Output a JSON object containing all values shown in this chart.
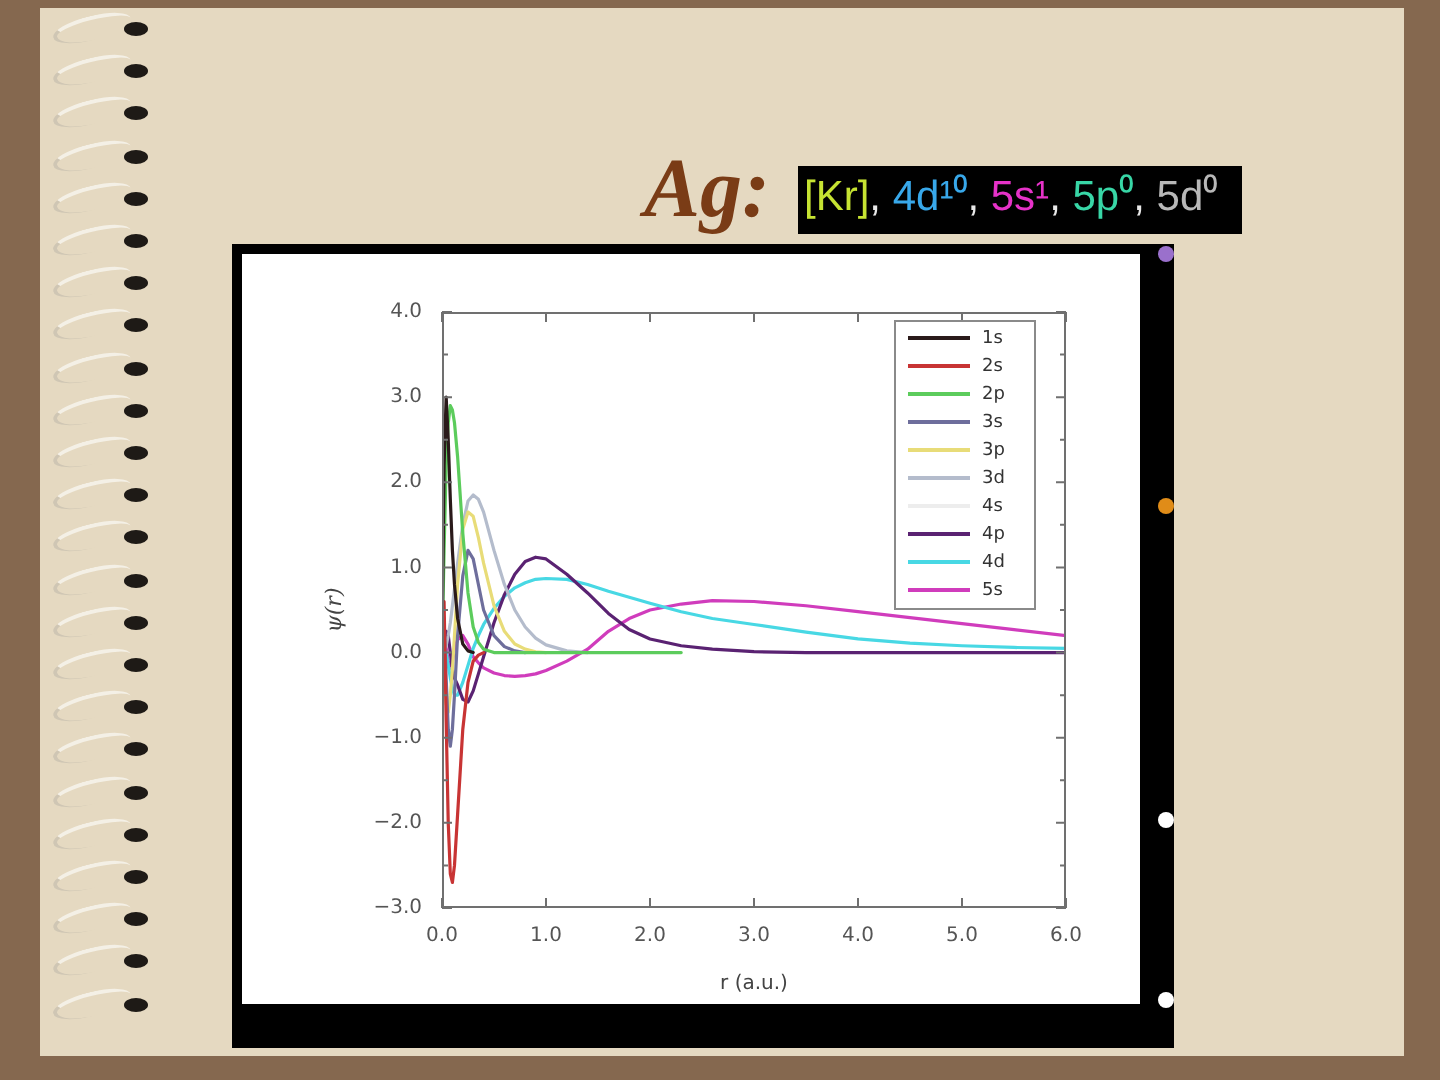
{
  "chart_data": {
    "type": "line",
    "title": "Ag:",
    "subtitle": "[Kr], 4d¹⁰, 5s¹, 5p⁰, 5d⁰",
    "xlabel": "r (a.u.)",
    "ylabel": "ψ(r)",
    "x": [
      0,
      0.02,
      0.04,
      0.06,
      0.08,
      0.1,
      0.12,
      0.15,
      0.2,
      0.25,
      0.3,
      0.35,
      0.4,
      0.5,
      0.6,
      0.7,
      0.8,
      0.9,
      1.0,
      1.2,
      1.4,
      1.6,
      1.8,
      2.0,
      2.3,
      2.6,
      3.0,
      3.5,
      4.0,
      4.5,
      5.0,
      5.5,
      6.0
    ],
    "series": [
      {
        "name": "1s",
        "color": "#2a1a1a",
        "values": [
          0,
          2.2,
          3.0,
          2.5,
          1.8,
          1.2,
          0.8,
          0.4,
          0.1,
          0.02,
          0,
          null,
          null,
          null,
          null,
          null,
          null,
          null,
          null,
          null,
          null,
          null,
          null,
          null,
          null,
          null,
          null,
          null,
          null,
          null,
          null,
          null,
          null
        ]
      },
      {
        "name": "2s",
        "color": "#c83434",
        "values": [
          0,
          0.6,
          -0.8,
          -2.0,
          -2.6,
          -2.7,
          -2.5,
          -1.9,
          -0.9,
          -0.35,
          -0.1,
          -0.03,
          0,
          null,
          null,
          null,
          null,
          null,
          null,
          null,
          null,
          null,
          null,
          null,
          null,
          null,
          null,
          null,
          null,
          null,
          null,
          null,
          null
        ]
      },
      {
        "name": "2p",
        "color": "#5ccc5c",
        "values": [
          0,
          1.2,
          2.2,
          2.7,
          2.9,
          2.85,
          2.7,
          2.3,
          1.4,
          0.7,
          0.3,
          0.12,
          0.04,
          0,
          0,
          0,
          0,
          0,
          0,
          0,
          0,
          0,
          0,
          0,
          0,
          null,
          null,
          null,
          null,
          null,
          null,
          null,
          null
        ]
      },
      {
        "name": "3s",
        "color": "#6e6e9c",
        "values": [
          0,
          0.4,
          -0.3,
          -0.9,
          -1.1,
          -0.9,
          -0.5,
          0.2,
          0.9,
          1.2,
          1.1,
          0.8,
          0.5,
          0.2,
          0.07,
          0.02,
          0,
          null,
          null,
          null,
          null,
          null,
          null,
          null,
          null,
          null,
          null,
          null,
          null,
          null,
          null,
          null,
          null
        ]
      },
      {
        "name": "3p",
        "color": "#e8dc78",
        "values": [
          0,
          -0.3,
          -0.6,
          -0.7,
          -0.5,
          -0.2,
          0.2,
          0.8,
          1.45,
          1.65,
          1.6,
          1.35,
          1.05,
          0.55,
          0.25,
          0.1,
          0.04,
          0.01,
          0,
          null,
          null,
          null,
          null,
          null,
          null,
          null,
          null,
          null,
          null,
          null,
          null,
          null,
          null
        ]
      },
      {
        "name": "3d",
        "color": "#b4bccc",
        "values": [
          0,
          0.02,
          0.08,
          0.2,
          0.35,
          0.55,
          0.75,
          1.05,
          1.5,
          1.78,
          1.85,
          1.8,
          1.65,
          1.2,
          0.8,
          0.5,
          0.3,
          0.17,
          0.09,
          0.02,
          0,
          null,
          null,
          null,
          null,
          null,
          null,
          null,
          null,
          null,
          null,
          null,
          null
        ]
      },
      {
        "name": "4s",
        "color": "#ededed",
        "values": [
          null,
          null,
          null,
          null,
          null,
          null,
          null,
          null,
          null,
          null,
          null,
          null,
          null,
          null,
          null,
          null,
          null,
          null,
          null,
          null,
          null,
          null,
          null,
          null,
          null,
          null,
          null,
          null,
          null,
          null,
          null,
          null,
          null
        ]
      },
      {
        "name": "4p",
        "color": "#5a2272",
        "values": [
          0,
          0.1,
          0.25,
          0.2,
          0.0,
          -0.2,
          -0.3,
          -0.38,
          -0.55,
          -0.58,
          -0.45,
          -0.25,
          -0.05,
          0.35,
          0.68,
          0.92,
          1.07,
          1.12,
          1.1,
          0.92,
          0.7,
          0.46,
          0.27,
          0.16,
          0.08,
          0.04,
          0.01,
          0,
          0,
          0,
          0,
          0,
          0
        ]
      },
      {
        "name": "4d",
        "color": "#48d8e4",
        "values": [
          0,
          0.05,
          0.0,
          -0.15,
          -0.3,
          -0.42,
          -0.5,
          -0.5,
          -0.35,
          -0.15,
          0.05,
          0.2,
          0.33,
          0.52,
          0.66,
          0.76,
          0.82,
          0.86,
          0.87,
          0.86,
          0.8,
          0.72,
          0.65,
          0.58,
          0.48,
          0.4,
          0.33,
          0.24,
          0.16,
          0.11,
          0.08,
          0.06,
          0.05
        ]
      },
      {
        "name": "5s",
        "color": "#d03cbc",
        "values": [
          0,
          0.15,
          0.05,
          -0.1,
          -0.15,
          -0.1,
          0.05,
          0.15,
          0.2,
          0.1,
          -0.05,
          -0.12,
          -0.18,
          -0.24,
          -0.27,
          -0.28,
          -0.27,
          -0.25,
          -0.21,
          -0.1,
          0.04,
          0.25,
          0.4,
          0.5,
          0.57,
          0.61,
          0.6,
          0.55,
          0.48,
          0.41,
          0.34,
          0.27,
          0.2
        ]
      }
    ],
    "xlim": [
      0,
      6
    ],
    "xticks": [
      {
        "value": 0,
        "label": "0.0"
      },
      {
        "value": 1,
        "label": "1.0"
      },
      {
        "value": 2,
        "label": "2.0"
      },
      {
        "value": 3,
        "label": "3.0"
      },
      {
        "value": 4,
        "label": "4.0"
      },
      {
        "value": 5,
        "label": "5.0"
      },
      {
        "value": 6,
        "label": "6.0"
      }
    ],
    "ylim": [
      -3,
      4
    ],
    "yticks": [
      {
        "value": -3,
        "label": "−3.0"
      },
      {
        "value": -2.5,
        "label": null
      },
      {
        "value": -2,
        "label": "−2.0"
      },
      {
        "value": -1.5,
        "label": null
      },
      {
        "value": -1,
        "label": "−1.0"
      },
      {
        "value": -0.5,
        "label": null
      },
      {
        "value": 0,
        "label": "0.0"
      },
      {
        "value": 0.5,
        "label": null
      },
      {
        "value": 1,
        "label": "1.0"
      },
      {
        "value": 1.5,
        "label": null
      },
      {
        "value": 2,
        "label": "2.0"
      },
      {
        "value": 2.5,
        "label": null
      },
      {
        "value": 3,
        "label": "3.0"
      },
      {
        "value": 3.5,
        "label": null
      },
      {
        "value": 4,
        "label": "4.0"
      }
    ],
    "legend": "top right"
  }
}
